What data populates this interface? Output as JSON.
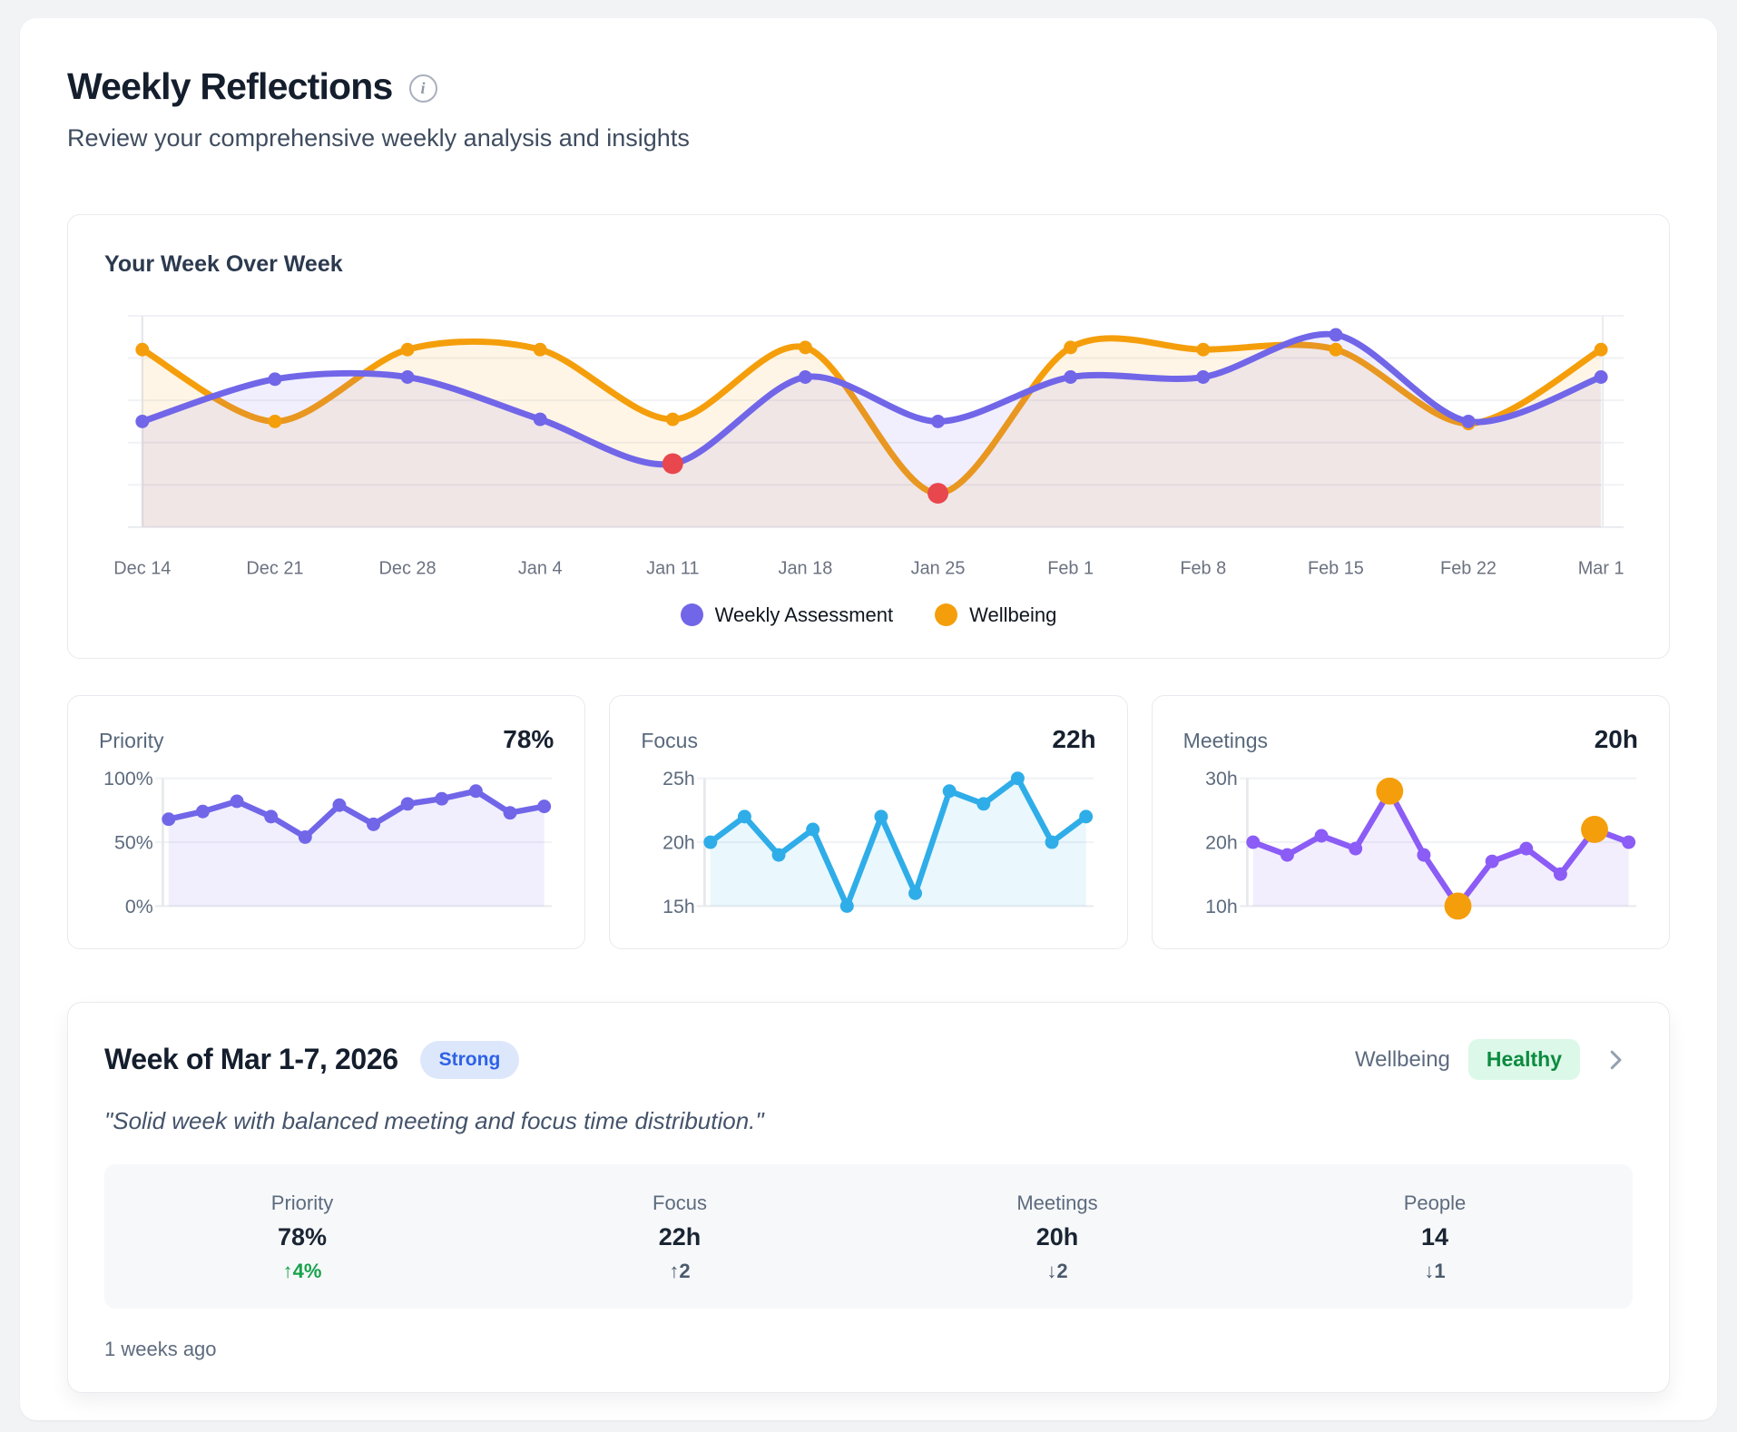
{
  "page": {
    "title": "Weekly Reflections",
    "subtitle": "Review your comprehensive weekly analysis and insights"
  },
  "icons": {
    "info": "i"
  },
  "chart_data": [
    {
      "id": "week-over-week",
      "type": "line",
      "smooth": true,
      "title": "Your Week Over Week",
      "x_labels": [
        "Dec 14",
        "Dec 21",
        "Dec 28",
        "Jan 4",
        "Jan 11",
        "Jan 18",
        "Jan 25",
        "Feb 1",
        "Feb 8",
        "Feb 15",
        "Feb 22",
        "Mar 1"
      ],
      "ylim": [
        0,
        100
      ],
      "grid": "horizontal",
      "legend_position": "bottom-center",
      "legend": [
        {
          "label": "Weekly Assessment",
          "color": "#7166E8"
        },
        {
          "label": "Wellbeing",
          "color": "#F59E0B"
        }
      ],
      "series": [
        {
          "name": "Wellbeing",
          "color": "#F59E0B",
          "fill": "rgba(245,158,11,0.10)",
          "values": [
            84,
            50,
            84,
            84,
            51,
            85,
            16,
            85,
            84,
            84,
            49,
            84
          ],
          "highlights": [
            {
              "index": 6,
              "color": "#E8474D"
            }
          ]
        },
        {
          "name": "Weekly Assessment",
          "color": "#7166E8",
          "fill": "rgba(113,102,232,0.10)",
          "values": [
            50,
            70,
            71,
            51,
            30,
            71,
            50,
            71,
            71,
            91,
            50,
            71
          ],
          "highlights": [
            {
              "index": 4,
              "color": "#E8474D"
            }
          ]
        }
      ]
    },
    {
      "id": "priority",
      "type": "line",
      "smooth": false,
      "label": "Priority",
      "value": "78%",
      "ylim": [
        0,
        100
      ],
      "yticks": [
        {
          "v": 100,
          "label": "100%"
        },
        {
          "v": 50,
          "label": "50%"
        },
        {
          "v": 0,
          "label": "0%"
        }
      ],
      "series": [
        {
          "name": "Priority",
          "color": "#7166E8",
          "fill": "rgba(113,102,232,0.10)",
          "values": [
            68,
            74,
            82,
            70,
            54,
            79,
            64,
            80,
            84,
            90,
            73,
            78
          ],
          "highlights": []
        }
      ]
    },
    {
      "id": "focus",
      "type": "line",
      "smooth": false,
      "label": "Focus",
      "value": "22h",
      "ylim": [
        15,
        25
      ],
      "yticks": [
        {
          "v": 25,
          "label": "25h"
        },
        {
          "v": 20,
          "label": "20h"
        },
        {
          "v": 15,
          "label": "15h"
        }
      ],
      "series": [
        {
          "name": "Focus",
          "color": "#2FADE8",
          "fill": "rgba(47,173,232,0.10)",
          "values": [
            20,
            22,
            19,
            21,
            15,
            22,
            16,
            24,
            23,
            25,
            20,
            22
          ],
          "highlights": []
        }
      ]
    },
    {
      "id": "meetings",
      "type": "line",
      "smooth": false,
      "label": "Meetings",
      "value": "20h",
      "ylim": [
        10,
        30
      ],
      "yticks": [
        {
          "v": 30,
          "label": "30h"
        },
        {
          "v": 20,
          "label": "20h"
        },
        {
          "v": 10,
          "label": "10h"
        }
      ],
      "series": [
        {
          "name": "Meetings",
          "color": "#8B5CF6",
          "fill": "rgba(139,92,246,0.10)",
          "values": [
            20,
            18,
            21,
            19,
            28,
            18,
            10,
            17,
            19,
            15,
            22,
            20
          ],
          "highlights": [
            {
              "index": 4,
              "color": "#F59E0B"
            },
            {
              "index": 6,
              "color": "#F59E0B"
            },
            {
              "index": 10,
              "color": "#F59E0B"
            }
          ]
        }
      ]
    }
  ],
  "summary_card": {
    "heading": "Week of Mar 1-7, 2026",
    "status_badge": "Strong",
    "wellbeing_label": "Wellbeing",
    "wellbeing_badge": "Healthy",
    "quote": "\"Solid week with balanced meeting and focus time distribution.\"",
    "stats": [
      {
        "label": "Priority",
        "value": "78%",
        "delta": "↑4%",
        "delta_color": "#16a34a"
      },
      {
        "label": "Focus",
        "value": "22h",
        "delta": "↑2",
        "delta_color": "#4b5a6d"
      },
      {
        "label": "Meetings",
        "value": "20h",
        "delta": "↓2",
        "delta_color": "#4b5a6d"
      },
      {
        "label": "People",
        "value": "14",
        "delta": "↓1",
        "delta_color": "#4b5a6d"
      }
    ],
    "footer": "1 weeks ago"
  }
}
